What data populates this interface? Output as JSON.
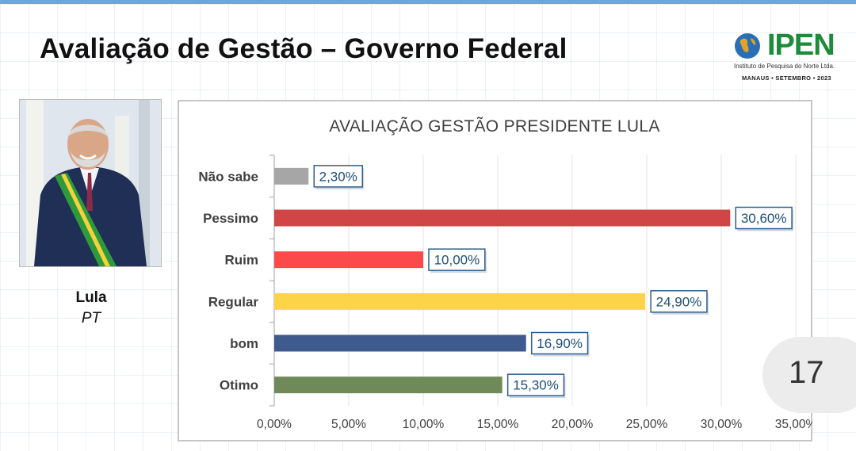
{
  "page": {
    "title": "Avaliação de Gestão – Governo Federal",
    "number": "17"
  },
  "logo": {
    "name": "IPEN",
    "subtitle": "Instituto de Pesquisa do Norte Ltda.",
    "date_line": "MANAUS • SETEMBRO • 2023"
  },
  "candidate": {
    "name": "Lula",
    "party": "PT"
  },
  "colors": {
    "brand_green": "#1e8a3a",
    "label_border": "#2f5f8f"
  },
  "chart_data": {
    "type": "bar",
    "orientation": "horizontal",
    "title": "AVALIAÇÃO GESTÃO PRESIDENTE LULA",
    "xlabel": "",
    "ylabel": "",
    "xlim": [
      0,
      35
    ],
    "grid": true,
    "legend": "none",
    "categories": [
      "Não sabe",
      "Pessimo",
      "Ruim",
      "Regular",
      "bom",
      "Otimo"
    ],
    "values": [
      2.3,
      30.6,
      10.0,
      24.9,
      16.9,
      15.3
    ],
    "data_labels": [
      "2,30%",
      "30,60%",
      "10,00%",
      "24,90%",
      "16,90%",
      "15,30%"
    ],
    "bar_colors": [
      "#a6a6a6",
      "#d04545",
      "#fb4a4a",
      "#fdd448",
      "#3f5a8d",
      "#6f8a58"
    ],
    "x_ticks": [
      0,
      5,
      10,
      15,
      20,
      25,
      30,
      35
    ],
    "x_tick_labels": [
      "0,00%",
      "5,00%",
      "10,00%",
      "15,00%",
      "20,00%",
      "25,00%",
      "30,00%",
      "35,00%"
    ]
  }
}
